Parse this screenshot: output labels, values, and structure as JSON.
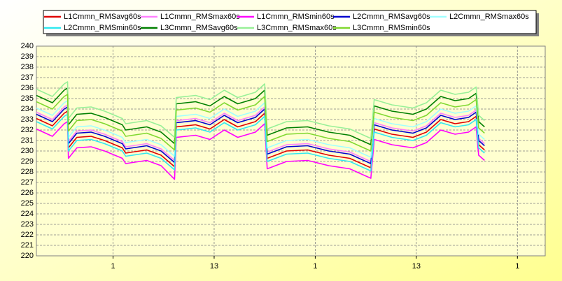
{
  "chart_data": {
    "type": "line",
    "x": [
      -9.1,
      -7.2,
      -5.8,
      -5.4,
      -5.3,
      -4.3,
      -2.6,
      -1.0,
      1.1,
      1.5,
      4.0,
      5.7,
      7.3,
      7.5,
      9.8,
      11.5,
      13.2,
      14.8,
      16.9,
      18.0,
      18.3,
      20.6,
      23.1,
      25.6,
      28.1,
      30.6,
      31.0,
      33.1,
      35.6,
      37.2,
      38.9,
      40.6,
      42.2,
      43.1,
      43.4,
      44.1
    ],
    "xlim": [
      -9.1,
      51.3
    ],
    "xticks": [
      {
        "value": 0,
        "label": "1"
      },
      {
        "value": 12,
        "label": "13"
      },
      {
        "value": 24,
        "label": "1"
      },
      {
        "value": 36,
        "label": "13"
      },
      {
        "value": 48,
        "label": "1"
      }
    ],
    "ylim": [
      220,
      240
    ],
    "yticks": [
      220,
      221,
      222,
      223,
      224,
      225,
      226,
      227,
      228,
      229,
      230,
      231,
      232,
      233,
      234,
      235,
      236,
      237,
      238,
      239,
      240
    ],
    "grid": true,
    "legend": "top",
    "series": [
      {
        "name": "L1Cmmn_RMSavg60s",
        "color": "#e00000",
        "values": [
          233.1,
          232.4,
          233.6,
          233.8,
          230.3,
          231.3,
          231.4,
          231.0,
          230.3,
          229.8,
          230.1,
          229.6,
          228.5,
          232.3,
          232.5,
          232.1,
          233.0,
          232.3,
          232.8,
          233.6,
          229.3,
          230.0,
          230.1,
          229.6,
          229.3,
          228.4,
          232.1,
          231.6,
          231.3,
          231.8,
          233.0,
          232.6,
          232.8,
          233.3,
          230.6,
          230.1
        ]
      },
      {
        "name": "L1Cmmn_RMSmax60s",
        "color": "#ff80ff",
        "values": [
          233.7,
          233.0,
          234.2,
          234.4,
          230.9,
          231.9,
          232.0,
          231.6,
          230.9,
          230.4,
          230.7,
          230.2,
          229.1,
          232.9,
          233.1,
          232.7,
          233.6,
          232.9,
          233.4,
          234.2,
          229.9,
          230.6,
          230.7,
          230.2,
          229.9,
          229.0,
          232.7,
          232.2,
          231.9,
          232.4,
          233.6,
          233.2,
          233.4,
          233.9,
          231.2,
          230.7
        ]
      },
      {
        "name": "L1Cmmn_RMSmin60s",
        "color": "#ff00ff",
        "values": [
          232.1,
          231.4,
          232.6,
          232.8,
          229.3,
          230.3,
          230.4,
          230.0,
          229.3,
          228.8,
          229.1,
          228.6,
          227.3,
          231.3,
          231.5,
          231.1,
          232.0,
          231.3,
          231.8,
          232.6,
          228.3,
          229.0,
          229.1,
          228.6,
          228.3,
          227.4,
          231.1,
          230.6,
          230.3,
          230.8,
          232.0,
          231.6,
          231.8,
          232.3,
          229.6,
          229.1
        ]
      },
      {
        "name": "L2Cmmn_RMSavg60s",
        "color": "#0000d0",
        "values": [
          233.5,
          232.8,
          234.0,
          234.2,
          230.7,
          231.7,
          231.8,
          231.4,
          230.7,
          230.2,
          230.5,
          230.0,
          228.9,
          232.7,
          232.9,
          232.5,
          233.4,
          232.7,
          233.2,
          234.0,
          229.7,
          230.4,
          230.5,
          230.0,
          229.7,
          228.8,
          232.5,
          232.0,
          231.7,
          232.2,
          233.4,
          233.0,
          233.2,
          233.7,
          231.0,
          230.5
        ]
      },
      {
        "name": "L2Cmmn_RMSmax60s",
        "color": "#a0ffff",
        "values": [
          234.1,
          233.4,
          234.6,
          234.8,
          231.3,
          232.3,
          232.4,
          232.0,
          231.3,
          230.8,
          231.1,
          230.6,
          229.5,
          233.3,
          233.5,
          233.1,
          234.0,
          233.3,
          233.8,
          234.6,
          230.3,
          231.0,
          231.1,
          230.6,
          230.3,
          229.4,
          233.1,
          232.6,
          232.3,
          232.8,
          234.0,
          233.6,
          233.8,
          234.3,
          231.6,
          231.1
        ]
      },
      {
        "name": "L2Cmmn_RMSmin60s",
        "color": "#30e8f0",
        "values": [
          232.8,
          232.1,
          233.3,
          233.5,
          230.0,
          231.0,
          231.1,
          230.7,
          230.0,
          229.5,
          229.8,
          229.3,
          228.2,
          232.0,
          232.2,
          231.8,
          232.7,
          232.0,
          232.5,
          233.3,
          229.0,
          229.7,
          229.8,
          229.3,
          229.0,
          228.1,
          231.8,
          231.3,
          231.0,
          231.5,
          232.7,
          232.3,
          232.5,
          233.0,
          230.3,
          229.8
        ]
      },
      {
        "name": "L3Cmmn_RMSavg60s",
        "color": "#008000",
        "values": [
          235.3,
          234.6,
          235.8,
          236.0,
          232.5,
          233.5,
          233.6,
          233.2,
          232.5,
          232.0,
          232.3,
          231.8,
          230.7,
          234.5,
          234.7,
          234.3,
          235.2,
          234.5,
          235.0,
          235.8,
          231.5,
          232.2,
          232.3,
          231.8,
          231.5,
          230.6,
          234.3,
          233.8,
          233.5,
          234.0,
          235.2,
          234.8,
          235.0,
          235.5,
          232.8,
          232.3
        ]
      },
      {
        "name": "L3Cmmn_RMSmax60s",
        "color": "#98f098",
        "values": [
          235.9,
          235.2,
          236.4,
          236.6,
          233.1,
          234.1,
          234.2,
          233.8,
          233.1,
          232.6,
          232.9,
          232.4,
          231.3,
          235.1,
          235.3,
          234.9,
          235.8,
          235.1,
          235.6,
          236.4,
          232.1,
          232.8,
          232.9,
          232.4,
          232.1,
          231.2,
          234.9,
          234.4,
          234.1,
          234.6,
          235.8,
          235.4,
          235.6,
          236.1,
          233.4,
          232.9
        ]
      },
      {
        "name": "L3Cmmn_RMSmin60s",
        "color": "#80d830",
        "values": [
          234.7,
          234.0,
          235.2,
          235.4,
          231.9,
          232.9,
          233.0,
          232.6,
          231.9,
          231.4,
          231.7,
          231.2,
          230.1,
          233.9,
          234.1,
          233.7,
          234.6,
          233.9,
          234.4,
          235.2,
          230.9,
          231.6,
          231.7,
          231.2,
          230.9,
          230.0,
          233.7,
          233.2,
          232.9,
          233.4,
          234.6,
          234.2,
          234.4,
          234.9,
          232.2,
          231.7
        ]
      }
    ]
  }
}
